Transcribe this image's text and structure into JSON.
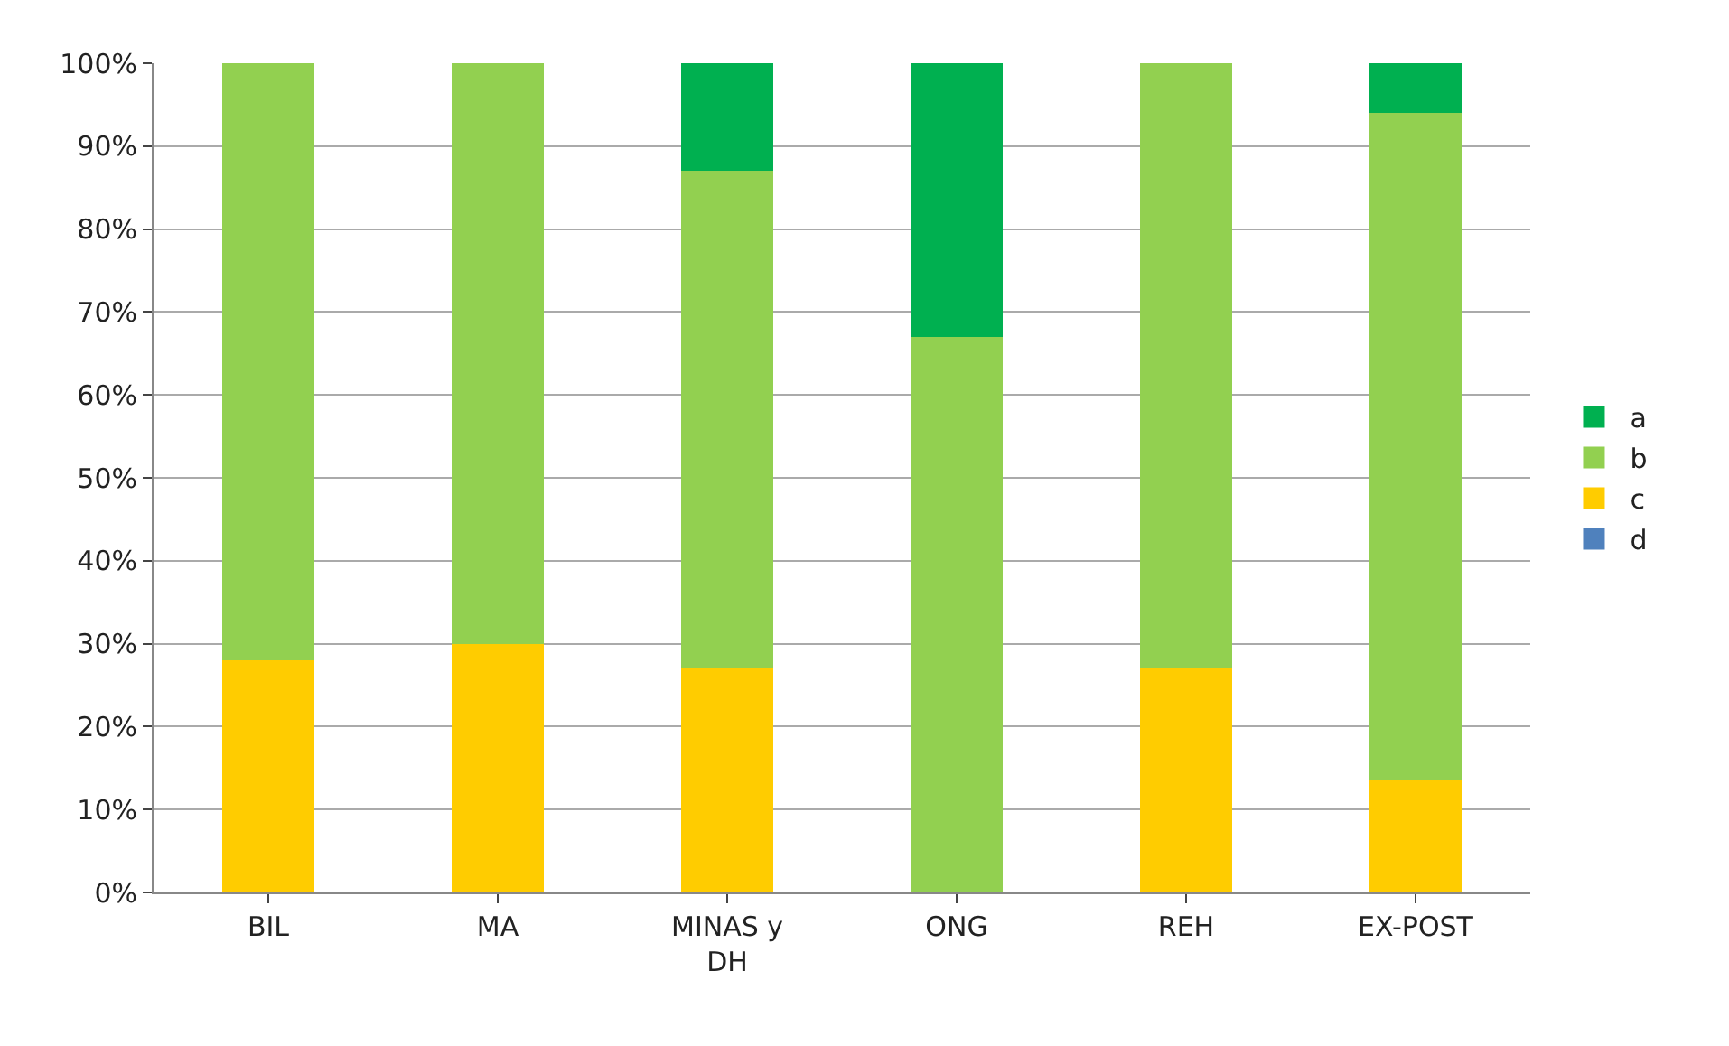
{
  "chart_data": {
    "type": "bar",
    "stacked": true,
    "categories": [
      "BIL",
      "MA",
      "MINAS y DH",
      "ONG",
      "REH",
      "EX-POST"
    ],
    "series": [
      {
        "name": "d",
        "color": "#4f81bd",
        "values": [
          0,
          0,
          0,
          0,
          0,
          0
        ]
      },
      {
        "name": "c",
        "color": "#ffcc00",
        "values": [
          28,
          30,
          27,
          0,
          27,
          13.5
        ]
      },
      {
        "name": "b",
        "color": "#92d050",
        "values": [
          72,
          70,
          60,
          67,
          73,
          80.5
        ]
      },
      {
        "name": "a",
        "color": "#00b050",
        "values": [
          0,
          0,
          13,
          33,
          0,
          6
        ]
      }
    ],
    "ylim": [
      0,
      100
    ],
    "yticks": [
      {
        "value": 0,
        "label": "0%"
      },
      {
        "value": 10,
        "label": "10%"
      },
      {
        "value": 20,
        "label": "20%"
      },
      {
        "value": 30,
        "label": "30%"
      },
      {
        "value": 40,
        "label": "40%"
      },
      {
        "value": 50,
        "label": "50%"
      },
      {
        "value": 60,
        "label": "60%"
      },
      {
        "value": 70,
        "label": "70%"
      },
      {
        "value": 80,
        "label": "80%"
      },
      {
        "value": 90,
        "label": "90%"
      },
      {
        "value": 100,
        "label": "100%"
      }
    ],
    "grid": "y",
    "legend": "right"
  }
}
